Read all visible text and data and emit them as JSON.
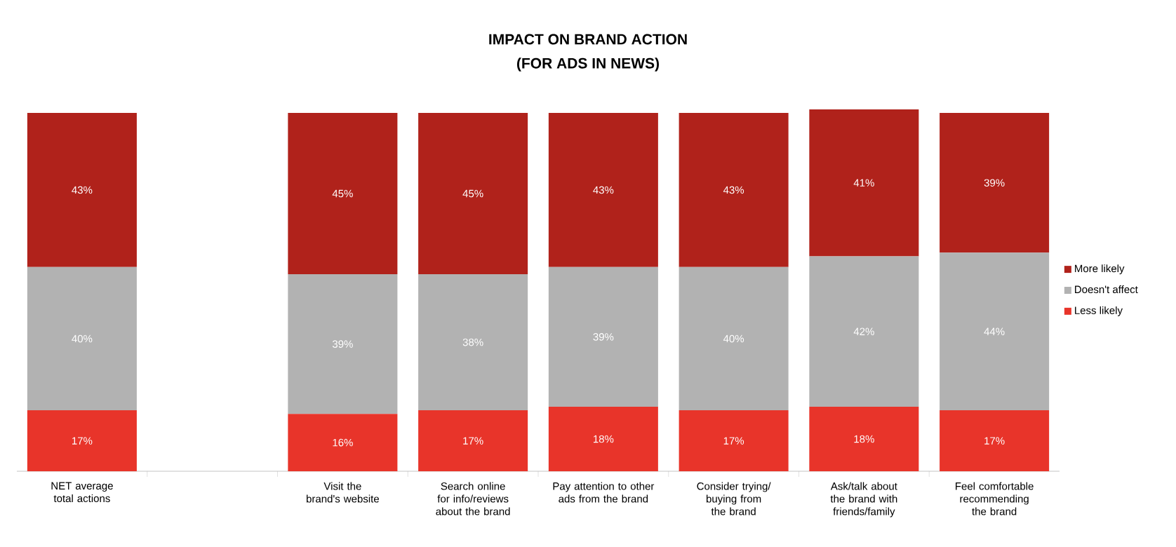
{
  "chart_data": {
    "type": "bar",
    "title": "IMPACT ON BRAND ACTION",
    "subtitle": "(FOR ADS IN NEWS)",
    "categories": [
      "NET average total actions",
      null,
      "Visit the brand's website",
      "Search online for info/reviews about the brand",
      "Pay attention to other ads from the brand",
      "Consider trying/ buying from the brand",
      "Ask/talk about the brand with friends/family",
      "Feel comfortable recommending the brand"
    ],
    "stacked": true,
    "legend": "right",
    "series": [
      {
        "name": "Less likely",
        "color": "#e8342a",
        "values": [
          17,
          null,
          16,
          17,
          18,
          17,
          18,
          17
        ],
        "value_labels": [
          "17%",
          null,
          "16%",
          "17%",
          "18%",
          "17%",
          "18%",
          "17%"
        ]
      },
      {
        "name": "Doesn't affect",
        "color": "#b2b2b2",
        "values": [
          40,
          null,
          39,
          38,
          39,
          40,
          42,
          44
        ],
        "value_labels": [
          "40%",
          null,
          "39%",
          "38%",
          "39%",
          "40%",
          "42%",
          "44%"
        ]
      },
      {
        "name": "More likely",
        "color": "#b0221b",
        "values": [
          43,
          null,
          45,
          45,
          43,
          43,
          41,
          39
        ],
        "value_labels": [
          "43%",
          null,
          "45%",
          "45%",
          "43%",
          "43%",
          "41%",
          "39%"
        ]
      }
    ]
  }
}
